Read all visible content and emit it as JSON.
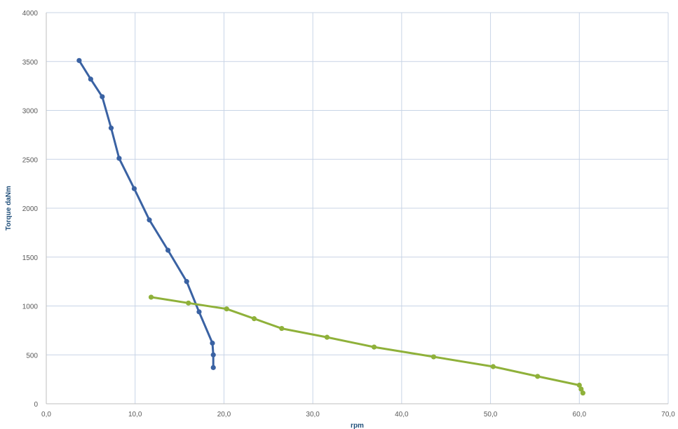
{
  "chart_data": {
    "type": "scatter",
    "title": "",
    "xlabel": "rpm",
    "ylabel": "Torque daNm",
    "xlim": [
      0,
      70
    ],
    "ylim": [
      0,
      4000
    ],
    "x_ticks": [
      0,
      10,
      20,
      30,
      40,
      50,
      60,
      70
    ],
    "x_tick_labels": [
      "0,0",
      "10,0",
      "20,0",
      "30,0",
      "40,0",
      "50,0",
      "60,0",
      "70,0"
    ],
    "y_ticks": [
      0,
      500,
      1000,
      1500,
      2000,
      2500,
      3000,
      3500,
      4000
    ],
    "y_tick_labels": [
      "0",
      "500",
      "1000",
      "1500",
      "2000",
      "2500",
      "3000",
      "3500",
      "4000"
    ],
    "grid": true,
    "legend": "none",
    "series": [
      {
        "color": "#3a62a3",
        "x": [
          3.7,
          5.0,
          6.3,
          7.3,
          8.2,
          9.9,
          11.6,
          13.7,
          15.8,
          17.2,
          18.7,
          18.8,
          18.8
        ],
        "y": [
          3510,
          3320,
          3140,
          2820,
          2510,
          2200,
          1880,
          1570,
          1250,
          940,
          620,
          500,
          370
        ]
      },
      {
        "color": "#8fb13a",
        "x": [
          11.8,
          16.0,
          20.3,
          23.4,
          26.5,
          31.6,
          36.9,
          43.6,
          50.3,
          55.3,
          60.0,
          60.2,
          60.4
        ],
        "y": [
          1090,
          1030,
          970,
          870,
          770,
          680,
          580,
          480,
          380,
          280,
          190,
          150,
          110
        ]
      }
    ]
  }
}
